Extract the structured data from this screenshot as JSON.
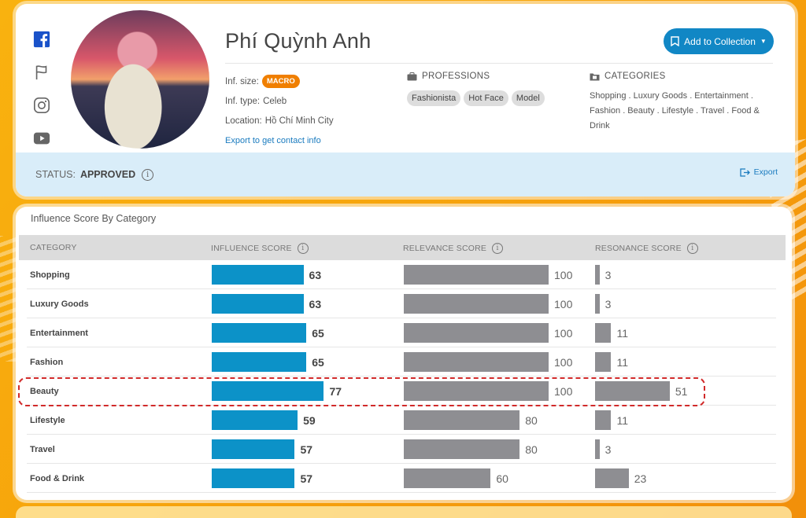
{
  "profile": {
    "name": "Phí Quỳnh Anh",
    "add_to_collection": "Add to Collection",
    "inf_size_label": "Inf. size:",
    "inf_size_value": "MACRO",
    "inf_type_label": "Inf. type:",
    "inf_type_value": "Celeb",
    "location_label": "Location:",
    "location_value": "Hồ Chí Minh City",
    "export_contact": "Export to get contact info",
    "professions_title": "PROFESSIONS",
    "professions": [
      "Fashionista",
      "Hot Face",
      "Model"
    ],
    "categories_title": "CATEGORIES",
    "categories_text": "Shopping . Luxury Goods . Entertainment . Fashion . Beauty . Lifestyle . Travel . Food & Drink",
    "status_label": "STATUS:",
    "status_value": "APPROVED",
    "export_label": "Export",
    "social_icons": [
      "facebook-icon",
      "flag-icon",
      "instagram-icon",
      "youtube-icon"
    ]
  },
  "scores": {
    "title": "Influence Score By Category",
    "headers": {
      "category": "CATEGORY",
      "influence": "INFLUENCE SCORE",
      "relevance": "RELEVANCE SCORE",
      "resonance": "RESONANCE SCORE"
    },
    "max": 100,
    "rows": [
      {
        "category": "Shopping",
        "influence": 63,
        "relevance": 100,
        "resonance": 3
      },
      {
        "category": "Luxury Goods",
        "influence": 63,
        "relevance": 100,
        "resonance": 3
      },
      {
        "category": "Entertainment",
        "influence": 65,
        "relevance": 100,
        "resonance": 11
      },
      {
        "category": "Fashion",
        "influence": 65,
        "relevance": 100,
        "resonance": 11
      },
      {
        "category": "Beauty",
        "influence": 77,
        "relevance": 100,
        "resonance": 51
      },
      {
        "category": "Lifestyle",
        "influence": 59,
        "relevance": 80,
        "resonance": 11
      },
      {
        "category": "Travel",
        "influence": 57,
        "relevance": 80,
        "resonance": 3
      },
      {
        "category": "Food & Drink",
        "influence": 57,
        "relevance": 60,
        "resonance": 23
      }
    ],
    "highlighted_category": "Beauty"
  },
  "colors": {
    "accent": "#1187c5",
    "influence_bar": "#0c92c8",
    "score_bar": "#8e8e92",
    "macro_badge": "#f07f00",
    "highlight": "#d12a2a"
  }
}
